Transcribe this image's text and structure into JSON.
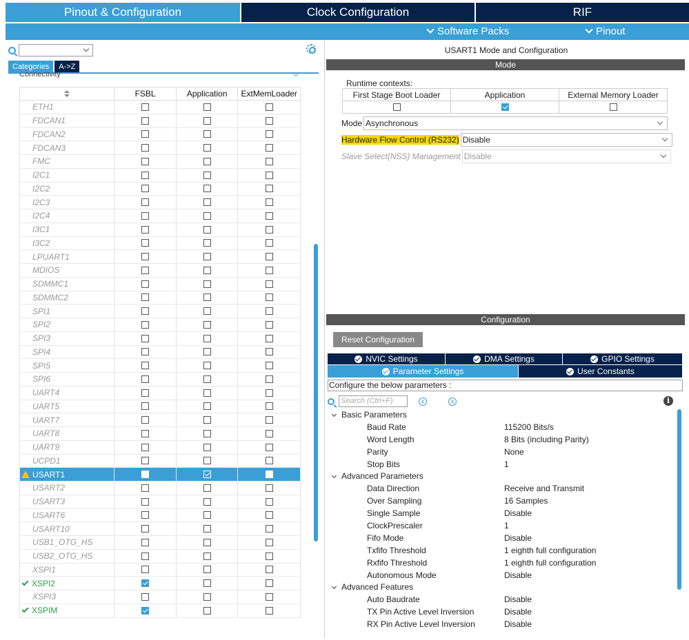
{
  "top_tabs": [
    "Pinout & Configuration",
    "Clock Configuration",
    "RIF"
  ],
  "subbar": {
    "software_packs": "Software Packs",
    "pinout": "Pinout"
  },
  "left": {
    "category_tabs": [
      "Categories",
      "A->Z"
    ],
    "section": "Connectivity",
    "columns": [
      "FSBL",
      "Application",
      "ExtMemLoader"
    ],
    "rows": [
      {
        "name": "ETH1",
        "state": "disabled",
        "fsbl": false,
        "app": false,
        "ext": false
      },
      {
        "name": "FDCAN1",
        "state": "disabled",
        "fsbl": false,
        "app": false,
        "ext": false
      },
      {
        "name": "FDCAN2",
        "state": "disabled",
        "fsbl": false,
        "app": false,
        "ext": false
      },
      {
        "name": "FDCAN3",
        "state": "disabled",
        "fsbl": false,
        "app": false,
        "ext": false
      },
      {
        "name": "FMC",
        "state": "disabled",
        "fsbl": false,
        "app": false,
        "ext": false
      },
      {
        "name": "I2C1",
        "state": "disabled",
        "fsbl": false,
        "app": false,
        "ext": false
      },
      {
        "name": "I2C2",
        "state": "disabled",
        "fsbl": false,
        "app": false,
        "ext": false
      },
      {
        "name": "I2C3",
        "state": "disabled",
        "fsbl": false,
        "app": false,
        "ext": false
      },
      {
        "name": "I2C4",
        "state": "disabled",
        "fsbl": false,
        "app": false,
        "ext": false
      },
      {
        "name": "I3C1",
        "state": "disabled",
        "fsbl": false,
        "app": false,
        "ext": false
      },
      {
        "name": "I3C2",
        "state": "disabled",
        "fsbl": false,
        "app": false,
        "ext": false
      },
      {
        "name": "LPUART1",
        "state": "disabled",
        "fsbl": false,
        "app": false,
        "ext": false
      },
      {
        "name": "MDIOS",
        "state": "disabled",
        "fsbl": false,
        "app": false,
        "ext": false
      },
      {
        "name": "SDMMC1",
        "state": "disabled",
        "fsbl": false,
        "app": false,
        "ext": false
      },
      {
        "name": "SDMMC2",
        "state": "disabled",
        "fsbl": false,
        "app": false,
        "ext": false
      },
      {
        "name": "SPI1",
        "state": "disabled",
        "fsbl": false,
        "app": false,
        "ext": false
      },
      {
        "name": "SPI2",
        "state": "disabled",
        "fsbl": false,
        "app": false,
        "ext": false
      },
      {
        "name": "SPI3",
        "state": "disabled",
        "fsbl": false,
        "app": false,
        "ext": false
      },
      {
        "name": "SPI4",
        "state": "disabled",
        "fsbl": false,
        "app": false,
        "ext": false
      },
      {
        "name": "SPI5",
        "state": "disabled",
        "fsbl": false,
        "app": false,
        "ext": false
      },
      {
        "name": "SPI6",
        "state": "disabled",
        "fsbl": false,
        "app": false,
        "ext": false
      },
      {
        "name": "UART4",
        "state": "disabled",
        "fsbl": false,
        "app": false,
        "ext": false
      },
      {
        "name": "UART5",
        "state": "disabled",
        "fsbl": false,
        "app": false,
        "ext": false
      },
      {
        "name": "UART7",
        "state": "disabled",
        "fsbl": false,
        "app": false,
        "ext": false
      },
      {
        "name": "UART8",
        "state": "disabled",
        "fsbl": false,
        "app": false,
        "ext": false
      },
      {
        "name": "UART9",
        "state": "disabled",
        "fsbl": false,
        "app": false,
        "ext": false
      },
      {
        "name": "UCPD1",
        "state": "disabled",
        "fsbl": false,
        "app": false,
        "ext": false
      },
      {
        "name": "USART1",
        "state": "selected",
        "fsbl": false,
        "app": true,
        "ext": false
      },
      {
        "name": "USART2",
        "state": "disabled",
        "fsbl": false,
        "app": false,
        "ext": false
      },
      {
        "name": "USART3",
        "state": "disabled",
        "fsbl": false,
        "app": false,
        "ext": false
      },
      {
        "name": "USART6",
        "state": "disabled",
        "fsbl": false,
        "app": false,
        "ext": false
      },
      {
        "name": "USART10",
        "state": "disabled",
        "fsbl": false,
        "app": false,
        "ext": false
      },
      {
        "name": "USB1_OTG_HS",
        "state": "disabled",
        "fsbl": false,
        "app": false,
        "ext": false
      },
      {
        "name": "USB2_OTG_HS",
        "state": "disabled",
        "fsbl": false,
        "app": false,
        "ext": false
      },
      {
        "name": "XSPI1",
        "state": "disabled",
        "fsbl": false,
        "app": false,
        "ext": false
      },
      {
        "name": "XSPI2",
        "state": "ok",
        "fsbl": true,
        "app": false,
        "ext": false
      },
      {
        "name": "XSPI3",
        "state": "disabled",
        "fsbl": false,
        "app": false,
        "ext": false
      },
      {
        "name": "XSPIM",
        "state": "ok",
        "fsbl": true,
        "app": false,
        "ext": false
      }
    ]
  },
  "right": {
    "title": "USART1 Mode and Configuration",
    "mode_bar": "Mode",
    "runtime_label": "Runtime contexts:",
    "contexts": [
      {
        "label": "First Stage Boot Loader",
        "checked": false
      },
      {
        "label": "Application",
        "checked": true
      },
      {
        "label": "External Memory Loader",
        "checked": false
      }
    ],
    "mode_label": "Mode",
    "mode_value": "Asynchronous",
    "hwfc_label": "Hardware Flow Control (RS232)",
    "hwfc_value": "Disable",
    "nss_label": "Slave Select(NSS) Management",
    "nss_value": "Disable",
    "config_bar": "Configuration",
    "reset_label": "Reset Configuration",
    "tabs_row1": [
      "NVIC Settings",
      "DMA Settings",
      "GPIO Settings"
    ],
    "tabs_row2": [
      "Parameter Settings",
      "User Constants"
    ],
    "hint": "Configure the below parameters :",
    "search_placeholder": "Search (Ctrl+F)",
    "info_glyph": "i",
    "params": [
      {
        "type": "group",
        "label": "Basic Parameters"
      },
      {
        "type": "item",
        "label": "Baud Rate",
        "value": "115200 Bits/s"
      },
      {
        "type": "item",
        "label": "Word Length",
        "value": "8 Bits (including Parity)"
      },
      {
        "type": "item",
        "label": "Parity",
        "value": "None"
      },
      {
        "type": "item",
        "label": "Stop Bits",
        "value": "1"
      },
      {
        "type": "group",
        "label": "Advanced Parameters"
      },
      {
        "type": "item",
        "label": "Data Direction",
        "value": "Receive and Transmit"
      },
      {
        "type": "item",
        "label": "Over Sampling",
        "value": "16 Samples"
      },
      {
        "type": "item",
        "label": "Single Sample",
        "value": "Disable"
      },
      {
        "type": "item",
        "label": "ClockPrescaler",
        "value": "1"
      },
      {
        "type": "item",
        "label": "Fifo Mode",
        "value": "Disable"
      },
      {
        "type": "item",
        "label": "Txfifo Threshold",
        "value": "1 eighth full configuration"
      },
      {
        "type": "item",
        "label": "Rxfifo Threshold",
        "value": "1 eighth full configuration"
      },
      {
        "type": "item",
        "label": "Autonomous Mode",
        "value": "Disable"
      },
      {
        "type": "group",
        "label": "Advanced Features"
      },
      {
        "type": "item",
        "label": "Auto Baudrate",
        "value": "Disable"
      },
      {
        "type": "item",
        "label": "TX Pin Active Level Inversion",
        "value": "Disable"
      },
      {
        "type": "item",
        "label": "RX Pin Active Level Inversion",
        "value": "Disable"
      }
    ]
  },
  "colors": {
    "accent": "#3a9fd6",
    "navy": "#06224a",
    "highlight": "#f5d800",
    "ok": "#2e9a49"
  }
}
